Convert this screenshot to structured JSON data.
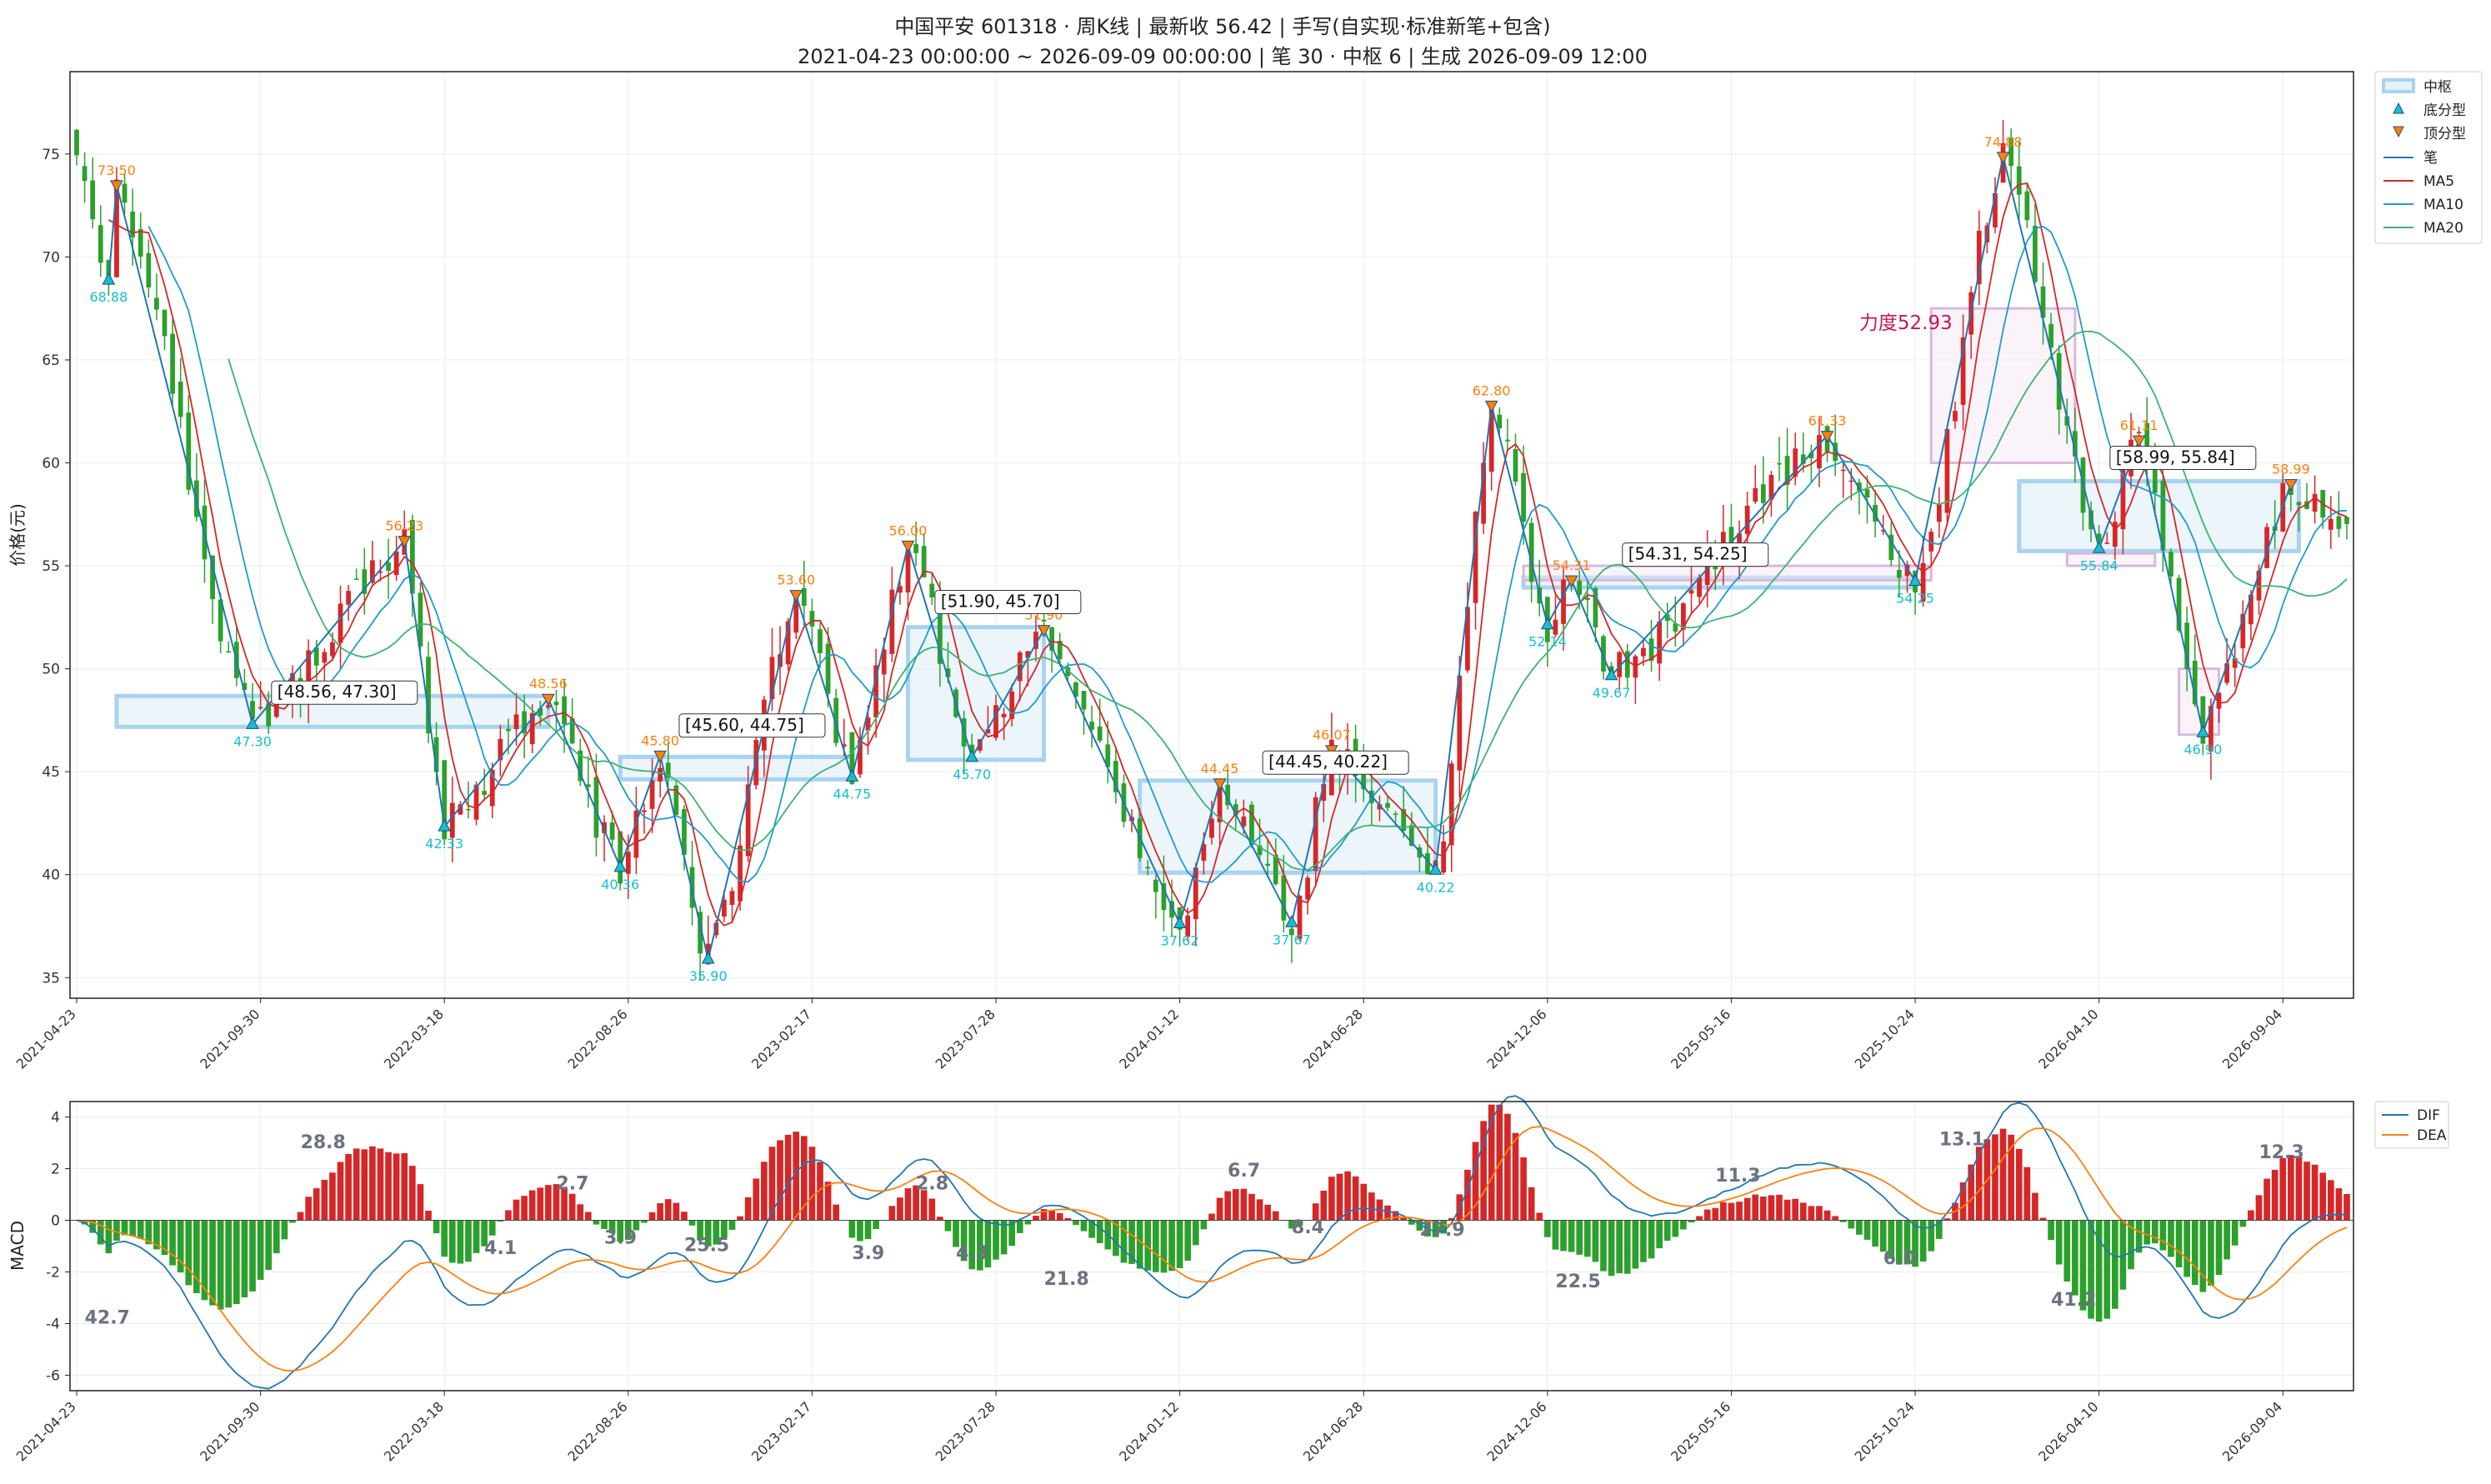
{
  "title_line1": "中国平安 601318 · 周K线 | 最新收 56.42 | 手写(自实现·标准新笔+包含)",
  "title_line2": "2021-04-23 00:00:00 ~ 2026-09-09 00:00:00 | 笔 30 · 中枢 6 | 生成 2026-09-09 12:00",
  "colors": {
    "up": "#d62728",
    "down": "#2ca02c",
    "bi": "#1f77b4",
    "ma5": "#d62728",
    "ma10": "#1f9bd0",
    "ma20": "#3cb371",
    "dif": "#1f77b4",
    "dea": "#ff7f0e",
    "zs_edge": "#a9d3ee",
    "zs_fill": "#e3f1f8",
    "bottom_fx": "#17becf",
    "top_fx": "#ff7f0e",
    "force": "#c2185b"
  },
  "chart_data": [
    {
      "type": "candlestick",
      "ylabel": "价格(元)",
      "ylim": [
        34,
        79
      ],
      "yticks": [
        35,
        40,
        45,
        50,
        55,
        60,
        65,
        70,
        75
      ],
      "xlim": [
        0,
        284
      ],
      "xticks": [
        {
          "i": 0,
          "label": "2021-04-23"
        },
        {
          "i": 23,
          "label": "2021-09-30"
        },
        {
          "i": 46,
          "label": "2022-03-18"
        },
        {
          "i": 69,
          "label": "2022-08-26"
        },
        {
          "i": 92,
          "label": "2023-02-17"
        },
        {
          "i": 115,
          "label": "2023-07-28"
        },
        {
          "i": 138,
          "label": "2024-01-12"
        },
        {
          "i": 161,
          "label": "2024-06-28"
        },
        {
          "i": 184,
          "label": "2024-12-06"
        },
        {
          "i": 207,
          "label": "2025-05-16"
        },
        {
          "i": 230,
          "label": "2025-10-24"
        },
        {
          "i": 253,
          "label": "2026-04-10"
        },
        {
          "i": 276,
          "label": "2026-09-04"
        }
      ],
      "bi_points": [
        {
          "i": 4,
          "p": 68.88
        },
        {
          "i": 5,
          "p": 73.5
        },
        {
          "i": 22,
          "p": 47.3
        },
        {
          "i": 41,
          "p": 56.23
        },
        {
          "i": 46,
          "p": 42.33
        },
        {
          "i": 59,
          "p": 48.56
        },
        {
          "i": 68,
          "p": 40.36
        },
        {
          "i": 73,
          "p": 45.8
        },
        {
          "i": 79,
          "p": 35.9
        },
        {
          "i": 90,
          "p": 53.6
        },
        {
          "i": 97,
          "p": 44.75
        },
        {
          "i": 104,
          "p": 56.0
        },
        {
          "i": 112,
          "p": 45.7
        },
        {
          "i": 121,
          "p": 51.9
        },
        {
          "i": 138,
          "p": 37.62
        },
        {
          "i": 143,
          "p": 44.45
        },
        {
          "i": 152,
          "p": 37.67
        },
        {
          "i": 157,
          "p": 46.07
        },
        {
          "i": 170,
          "p": 40.22
        },
        {
          "i": 177,
          "p": 62.8
        },
        {
          "i": 184,
          "p": 52.14
        },
        {
          "i": 187,
          "p": 54.31
        },
        {
          "i": 192,
          "p": 49.67
        },
        {
          "i": 219,
          "p": 61.33
        },
        {
          "i": 230,
          "p": 54.25
        },
        {
          "i": 241,
          "p": 74.88
        },
        {
          "i": 253,
          "p": 55.84
        },
        {
          "i": 258,
          "p": 61.11
        },
        {
          "i": 266,
          "p": 46.9
        },
        {
          "i": 277,
          "p": 58.99
        }
      ],
      "fx_labels": [
        {
          "i": 4,
          "p": 68.88,
          "text": "68.88",
          "kind": "bottom"
        },
        {
          "i": 5,
          "p": 73.5,
          "text": "73.50",
          "kind": "top"
        },
        {
          "i": 22,
          "p": 47.3,
          "text": "47.30",
          "kind": "bottom"
        },
        {
          "i": 41,
          "p": 56.23,
          "text": "56.23",
          "kind": "top"
        },
        {
          "i": 46,
          "p": 42.33,
          "text": "42.33",
          "kind": "bottom"
        },
        {
          "i": 59,
          "p": 48.56,
          "text": "48.56",
          "kind": "top"
        },
        {
          "i": 68,
          "p": 40.36,
          "text": "40.36",
          "kind": "bottom"
        },
        {
          "i": 73,
          "p": 45.8,
          "text": "45.80",
          "kind": "top"
        },
        {
          "i": 79,
          "p": 35.9,
          "text": "35.90",
          "kind": "bottom"
        },
        {
          "i": 90,
          "p": 53.6,
          "text": "53.60",
          "kind": "top"
        },
        {
          "i": 97,
          "p": 44.75,
          "text": "44.75",
          "kind": "bottom"
        },
        {
          "i": 104,
          "p": 56.0,
          "text": "56.00",
          "kind": "top"
        },
        {
          "i": 112,
          "p": 45.7,
          "text": "45.70",
          "kind": "bottom"
        },
        {
          "i": 121,
          "p": 51.9,
          "text": "51.90",
          "kind": "top"
        },
        {
          "i": 138,
          "p": 37.62,
          "text": "37.62",
          "kind": "bottom"
        },
        {
          "i": 143,
          "p": 44.45,
          "text": "44.45",
          "kind": "top"
        },
        {
          "i": 152,
          "p": 37.67,
          "text": "37.67",
          "kind": "bottom"
        },
        {
          "i": 157,
          "p": 46.07,
          "text": "46.07",
          "kind": "top"
        },
        {
          "i": 170,
          "p": 40.22,
          "text": "40.22",
          "kind": "bottom"
        },
        {
          "i": 177,
          "p": 62.8,
          "text": "62.80",
          "kind": "top"
        },
        {
          "i": 184,
          "p": 52.14,
          "text": "52.14",
          "kind": "bottom"
        },
        {
          "i": 187,
          "p": 54.31,
          "text": "54.31",
          "kind": "top"
        },
        {
          "i": 192,
          "p": 49.67,
          "text": "49.67",
          "kind": "bottom"
        },
        {
          "i": 219,
          "p": 61.33,
          "text": "61.33",
          "kind": "top"
        },
        {
          "i": 230,
          "p": 54.25,
          "text": "54.25",
          "kind": "bottom"
        },
        {
          "i": 241,
          "p": 74.88,
          "text": "74.88",
          "kind": "top"
        },
        {
          "i": 253,
          "p": 55.84,
          "text": "55.84",
          "kind": "bottom"
        },
        {
          "i": 258,
          "p": 61.11,
          "text": "61.11",
          "kind": "top"
        },
        {
          "i": 266,
          "p": 46.9,
          "text": "46.90",
          "kind": "bottom"
        },
        {
          "i": 277,
          "p": 58.99,
          "text": "58.99",
          "kind": "top"
        }
      ],
      "zhongshu": [
        {
          "i0": 5,
          "i1": 59,
          "lo": 47.3,
          "hi": 48.56,
          "label": "[48.56, 47.30]",
          "label_i": 25,
          "label_p": 48.6
        },
        {
          "i0": 68,
          "i1": 97,
          "lo": 44.75,
          "hi": 45.6,
          "label": "[45.60, 44.75]",
          "label_i": 76,
          "label_p": 47.0
        },
        {
          "i0": 104,
          "i1": 121,
          "lo": 45.7,
          "hi": 51.9,
          "label": "[51.90, 45.70]",
          "label_i": 108,
          "label_p": 53.0
        },
        {
          "i0": 133,
          "i1": 170,
          "lo": 40.22,
          "hi": 44.45,
          "label": "[44.45, 40.22]",
          "label_i": 149,
          "label_p": 45.2
        },
        {
          "i0": 181,
          "i1": 230,
          "lo": 54.25,
          "hi": 54.31,
          "label": "[54.31, 54.25]",
          "label_i": 194,
          "label_p": 55.3
        },
        {
          "i0": 243,
          "i1": 278,
          "lo": 55.84,
          "hi": 58.99,
          "label": "[58.99, 55.84]",
          "label_i": 255,
          "label_p": 60.0
        }
      ],
      "force_boxes": [
        {
          "i0": 181,
          "i1": 232,
          "lo": 54.3,
          "hi": 55.0
        },
        {
          "i0": 232,
          "i1": 250,
          "lo": 60.0,
          "hi": 67.5
        },
        {
          "i0": 249,
          "i1": 260,
          "lo": 55.0,
          "hi": 55.6
        },
        {
          "i0": 263,
          "i1": 268,
          "lo": 46.8,
          "hi": 50.0
        }
      ],
      "force_label": {
        "i": 223,
        "p": 66.5,
        "text": "力度52.93"
      },
      "legend": [
        "中枢",
        "底分型",
        "顶分型",
        "笔",
        "MA5",
        "MA10",
        "MA20"
      ]
    },
    {
      "type": "macd",
      "ylabel": "MACD",
      "ylim": [
        -6.6,
        4.6
      ],
      "yticks": [
        -6,
        -4,
        -2,
        0,
        2,
        4
      ],
      "area_labels": [
        {
          "i": 1,
          "v": -4.0,
          "text": "42.7"
        },
        {
          "i": 28,
          "v": 2.8,
          "text": "28.8"
        },
        {
          "i": 51,
          "v": -1.3,
          "text": "4.1"
        },
        {
          "i": 60,
          "v": 1.2,
          "text": "2.7"
        },
        {
          "i": 66,
          "v": -0.9,
          "text": "3.9"
        },
        {
          "i": 76,
          "v": -1.2,
          "text": "25.5"
        },
        {
          "i": 97,
          "v": -1.5,
          "text": "3.9"
        },
        {
          "i": 105,
          "v": 1.2,
          "text": "2.8"
        },
        {
          "i": 110,
          "v": -1.5,
          "text": "4.3"
        },
        {
          "i": 121,
          "v": -2.5,
          "text": "21.8"
        },
        {
          "i": 144,
          "v": 1.7,
          "text": "6.7"
        },
        {
          "i": 152,
          "v": -0.5,
          "text": "8.4"
        },
        {
          "i": 168,
          "v": -0.6,
          "text": "27.9"
        },
        {
          "i": 185,
          "v": -2.6,
          "text": "22.5"
        },
        {
          "i": 205,
          "v": 1.5,
          "text": "11.3"
        },
        {
          "i": 226,
          "v": -1.7,
          "text": "6.0"
        },
        {
          "i": 233,
          "v": 2.9,
          "text": "13.1"
        },
        {
          "i": 247,
          "v": -3.3,
          "text": "41.2"
        },
        {
          "i": 273,
          "v": 2.4,
          "text": "12.3"
        }
      ],
      "legend": [
        "DIF",
        "DEA"
      ]
    }
  ]
}
